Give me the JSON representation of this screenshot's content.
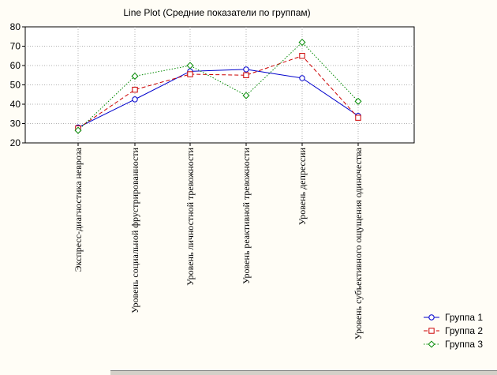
{
  "chart_data": {
    "type": "line",
    "title": "Line Plot (Средние показатели по группам)",
    "xlabel": "",
    "ylabel": "",
    "ylim": [
      20,
      80
    ],
    "yticks": [
      20,
      30,
      40,
      50,
      60,
      70,
      80
    ],
    "grid": true,
    "legend_position": "bottom-right",
    "categories": [
      "Экспресс-диагностика невроза",
      "Уровень социальной фрустрированности",
      "Уровень личностной тревожности",
      "Уровень реактивной тревожности",
      "Уровень депрессии",
      "Уровень субъективного ощущения одиночества"
    ],
    "series": [
      {
        "name": "Группа 1",
        "values": [
          28,
          42.5,
          57,
          58,
          53.5,
          34
        ],
        "color": "#0000cc",
        "marker": "circle",
        "dash": "solid"
      },
      {
        "name": "Группа 2",
        "values": [
          27.5,
          47.5,
          55.5,
          55,
          65,
          33
        ],
        "color": "#cc0000",
        "marker": "square",
        "dash": "dashed"
      },
      {
        "name": "Группа 3",
        "values": [
          26.5,
          54.5,
          60,
          44.5,
          72,
          41.5
        ],
        "color": "#008800",
        "marker": "diamond",
        "dash": "dotted"
      }
    ]
  }
}
